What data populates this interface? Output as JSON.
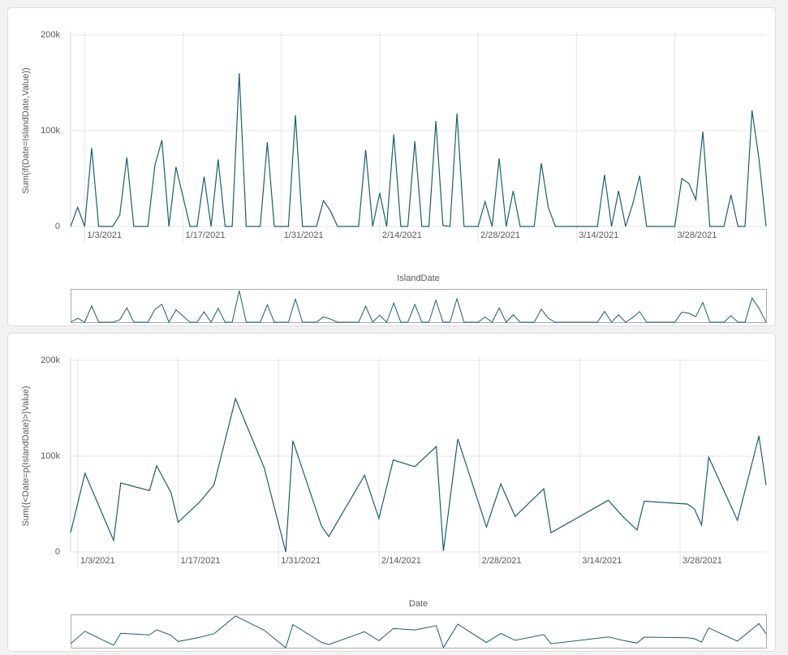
{
  "chart_data": [
    {
      "type": "line",
      "y_label": "Sum(if(Date=IslandDate,Value))",
      "x_label": "IslandDate",
      "color": "#19606e",
      "grid": true,
      "xlim": [
        "1/1/2021",
        "4/10/2021"
      ],
      "xticks": [
        "1/3/2021",
        "1/17/2021",
        "1/31/2021",
        "2/14/2021",
        "2/28/2021",
        "3/14/2021",
        "3/28/2021"
      ],
      "ylim": [
        0,
        200000
      ],
      "yticks": [
        0,
        {
          "value": 100000,
          "label": "100k"
        },
        {
          "value": 200000,
          "label": "200k"
        }
      ],
      "x": [
        "1/1/2021",
        "1/2/2021",
        "1/3/2021",
        "1/4/2021",
        "1/5/2021",
        "1/6/2021",
        "1/7/2021",
        "1/8/2021",
        "1/9/2021",
        "1/10/2021",
        "1/11/2021",
        "1/12/2021",
        "1/13/2021",
        "1/14/2021",
        "1/15/2021",
        "1/16/2021",
        "1/17/2021",
        "1/18/2021",
        "1/19/2021",
        "1/20/2021",
        "1/21/2021",
        "1/22/2021",
        "1/23/2021",
        "1/24/2021",
        "1/25/2021",
        "1/26/2021",
        "1/27/2021",
        "1/28/2021",
        "1/29/2021",
        "1/30/2021",
        "1/31/2021",
        "2/1/2021",
        "2/2/2021",
        "2/3/2021",
        "2/4/2021",
        "2/5/2021",
        "2/6/2021",
        "2/7/2021",
        "2/8/2021",
        "2/9/2021",
        "2/10/2021",
        "2/11/2021",
        "2/12/2021",
        "2/13/2021",
        "2/14/2021",
        "2/15/2021",
        "2/16/2021",
        "2/17/2021",
        "2/18/2021",
        "2/19/2021",
        "2/20/2021",
        "2/21/2021",
        "2/22/2021",
        "2/23/2021",
        "2/24/2021",
        "2/25/2021",
        "2/26/2021",
        "2/27/2021",
        "2/28/2021",
        "3/1/2021",
        "3/2/2021",
        "3/3/2021",
        "3/4/2021",
        "3/5/2021",
        "3/6/2021",
        "3/7/2021",
        "3/8/2021",
        "3/9/2021",
        "3/10/2021",
        "3/11/2021",
        "3/12/2021",
        "3/13/2021",
        "3/14/2021",
        "3/15/2021",
        "3/16/2021",
        "3/17/2021",
        "3/18/2021",
        "3/19/2021",
        "3/20/2021",
        "3/21/2021",
        "3/22/2021",
        "3/23/2021",
        "3/24/2021",
        "3/25/2021",
        "3/26/2021",
        "3/27/2021",
        "3/28/2021",
        "3/29/2021",
        "3/30/2021",
        "3/31/2021",
        "4/1/2021",
        "4/2/2021",
        "4/3/2021",
        "4/4/2021",
        "4/5/2021",
        "4/6/2021",
        "4/7/2021",
        "4/8/2021",
        "4/9/2021",
        "4/10/2021"
      ],
      "values": [
        0,
        20000,
        0,
        82000,
        0,
        0,
        0,
        12000,
        72000,
        0,
        0,
        0,
        64000,
        90000,
        0,
        62000,
        31000,
        0,
        0,
        52000,
        0,
        70000,
        0,
        0,
        160000,
        0,
        0,
        0,
        88000,
        0,
        0,
        0,
        116000,
        0,
        0,
        0,
        27000,
        16000,
        0,
        0,
        0,
        0,
        80000,
        0,
        35000,
        0,
        96000,
        0,
        0,
        89000,
        0,
        0,
        110000,
        1000,
        0,
        118000,
        0,
        0,
        0,
        26000,
        0,
        71000,
        0,
        37000,
        0,
        0,
        0,
        66000,
        20000,
        0,
        0,
        0,
        0,
        0,
        0,
        0,
        54000,
        0,
        37000,
        0,
        23000,
        53000,
        0,
        0,
        0,
        0,
        0,
        50000,
        45000,
        28000,
        99000,
        0,
        0,
        0,
        33000,
        0,
        0,
        121000,
        70000,
        0
      ]
    },
    {
      "type": "line",
      "y_label": "Sum({<Date=p(IslandDate)>}Value)",
      "x_label": "Date",
      "color": "#19606e",
      "grid": true,
      "xlim": [
        "1/2/2021",
        "4/9/2021"
      ],
      "xticks": [
        "1/3/2021",
        "1/17/2021",
        "1/31/2021",
        "2/14/2021",
        "2/28/2021",
        "3/14/2021",
        "3/28/2021"
      ],
      "ylim": [
        0,
        200000
      ],
      "yticks": [
        0,
        {
          "value": 100000,
          "label": "100k"
        },
        {
          "value": 200000,
          "label": "200k"
        }
      ],
      "x": [
        "1/2/2021",
        "1/4/2021",
        "1/8/2021",
        "1/9/2021",
        "1/13/2021",
        "1/14/2021",
        "1/16/2021",
        "1/17/2021",
        "1/20/2021",
        "1/22/2021",
        "1/25/2021",
        "1/29/2021",
        "2/1/2021",
        "2/2/2021",
        "2/6/2021",
        "2/7/2021",
        "2/12/2021",
        "2/14/2021",
        "2/16/2021",
        "2/19/2021",
        "2/22/2021",
        "2/23/2021",
        "2/25/2021",
        "3/1/2021",
        "3/3/2021",
        "3/5/2021",
        "3/9/2021",
        "3/10/2021",
        "3/18/2021",
        "3/20/2021",
        "3/22/2021",
        "3/23/2021",
        "3/29/2021",
        "3/30/2021",
        "3/31/2021",
        "4/1/2021",
        "4/5/2021",
        "4/8/2021",
        "4/9/2021"
      ],
      "values": [
        20000,
        82000,
        12000,
        72000,
        64000,
        90000,
        62000,
        31000,
        52000,
        70000,
        160000,
        88000,
        0,
        116000,
        27000,
        16000,
        80000,
        35000,
        96000,
        89000,
        110000,
        1000,
        118000,
        26000,
        71000,
        37000,
        66000,
        20000,
        54000,
        37000,
        23000,
        53000,
        50000,
        45000,
        28000,
        99000,
        33000,
        121000,
        70000
      ]
    }
  ]
}
